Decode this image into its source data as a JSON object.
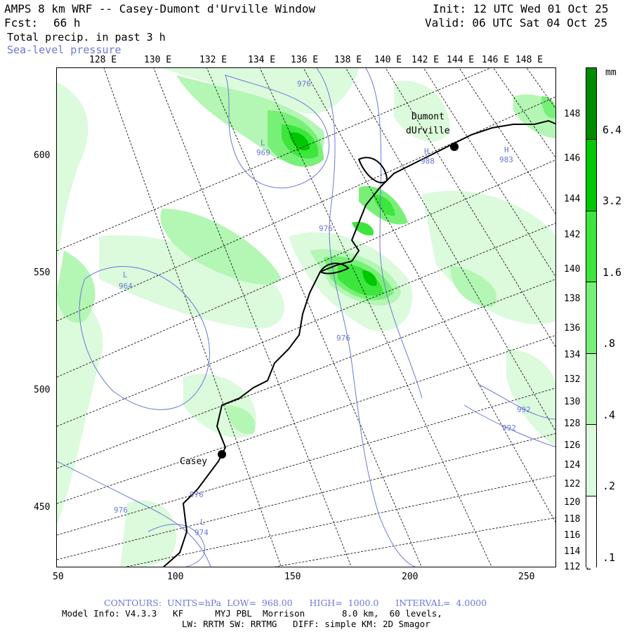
{
  "header": {
    "title": "AMPS 8 km WRF -- Casey-Dumont d'Urville Window",
    "fcst_label": "Fcst:",
    "fcst_value": "66 h",
    "field": "Total precip. in past 3 h",
    "overlay": "Sea-level pressure",
    "init": "Init: 12 UTC Wed 01 Oct 25",
    "valid": "Valid: 06 UTC Sat 04 Oct 25"
  },
  "axes": {
    "top_lon": [
      "128 E",
      "130 E",
      "132 E",
      "134 E",
      "136 E",
      "138 E",
      "140 E",
      "142 E",
      "144 E",
      "146 E",
      "148 E"
    ],
    "right_lon": [
      "148 E",
      "146 E",
      "144 E",
      "142 E",
      "140 E",
      "138 E",
      "136 E",
      "134 E",
      "132 E",
      "130 E",
      "128 E",
      "126 E",
      "124 E",
      "122 E",
      "120 E",
      "118 E",
      "116 E",
      "114 E",
      "112 E"
    ],
    "bottom_ticks": [
      "50",
      "100",
      "150",
      "200",
      "250"
    ],
    "left_ticks": [
      "600",
      "550",
      "500",
      "450"
    ]
  },
  "map_labels": {
    "dumont": "Dumont",
    "durville": "dUrville",
    "casey": "Casey",
    "centers": [
      {
        "type": "L",
        "value": "969"
      },
      {
        "type": "H",
        "value": "988"
      },
      {
        "type": "H",
        "value": "983"
      },
      {
        "type": "L",
        "value": "964"
      },
      {
        "type": "L",
        "value": "974"
      }
    ],
    "isobars": [
      "976",
      "976",
      "976",
      "976",
      "976",
      "992",
      "992"
    ]
  },
  "colorbar": {
    "unit": "mm",
    "labels": [
      "6.4",
      "3.2",
      "1.6",
      ".8",
      ".4",
      ".2",
      ".1"
    ],
    "colors": [
      "#008c00",
      "#00c800",
      "#3ce63c",
      "#78f078",
      "#b4f6b4",
      "#dcfadc",
      "#ffffff"
    ]
  },
  "footer": {
    "contours": "CONTOURS:  UNITS=hPa  LOW=  968.00      HIGH=  1000.0      INTERVAL=  4.0000",
    "model_info": "Model Info: V4.3.3   KF      MYJ PBL  Morrison       8.0 km,  60 levels,",
    "physics": "LW: RRTM SW: RRTMG   DIFF: simple KM: 2D Smagor"
  }
}
